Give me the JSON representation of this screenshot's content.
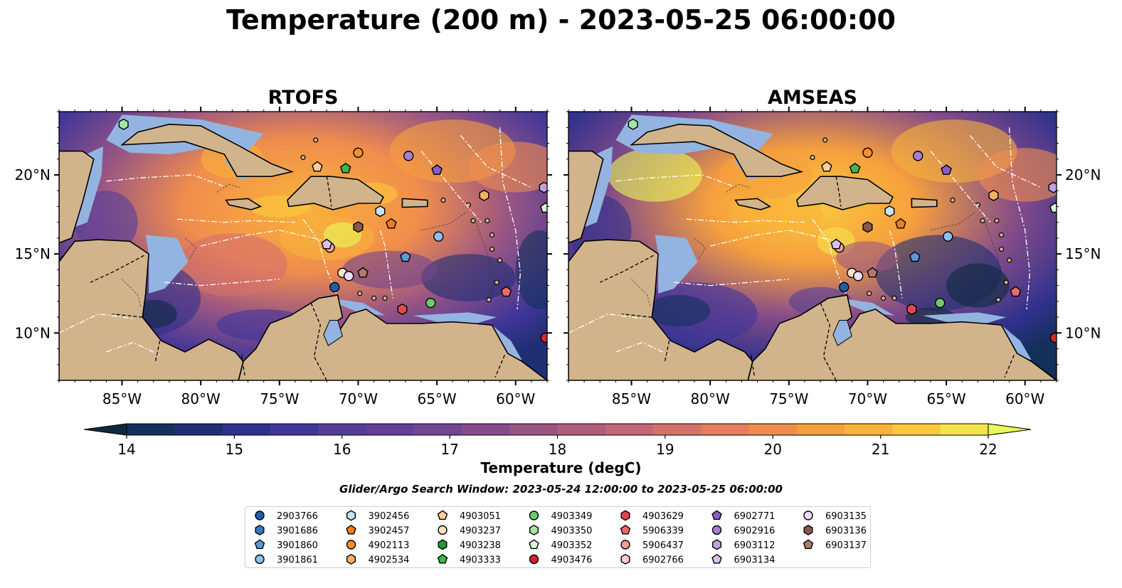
{
  "title": "Temperature (200 m) - 2023-05-25 06:00:00",
  "panels": [
    {
      "title": "RTOFS",
      "variant": 0
    },
    {
      "title": "AMSEAS",
      "variant": 1
    }
  ],
  "map": {
    "lon_range": [
      -89,
      -58
    ],
    "lat_range": [
      7,
      24
    ],
    "lon_ticks": [
      {
        "lon": -85,
        "label": "85°W"
      },
      {
        "lon": -80,
        "label": "80°W"
      },
      {
        "lon": -75,
        "label": "75°W"
      },
      {
        "lon": -70,
        "label": "70°W"
      },
      {
        "lon": -65,
        "label": "65°W"
      },
      {
        "lon": -60,
        "label": "60°W"
      }
    ],
    "lat_ticks": [
      {
        "lat": 20,
        "label": "20°N"
      },
      {
        "lat": 15,
        "label": "15°N"
      },
      {
        "lat": 10,
        "label": "10°N"
      }
    ],
    "colors": {
      "land": "#d2b48c",
      "shelf": "#93b4e0",
      "coast": "#000000",
      "eez": "#ffffff"
    }
  },
  "colorbar": {
    "label": "Temperature (degC)",
    "min": 14,
    "max": 22,
    "ticks": [
      "14",
      "15",
      "16",
      "17",
      "18",
      "19",
      "20",
      "21",
      "22"
    ],
    "colors": [
      "#0d2a3d",
      "#13305a",
      "#1f2f73",
      "#2f318c",
      "#403699",
      "#533d9b",
      "#633f96",
      "#724590",
      "#844c89",
      "#9a5683",
      "#b05c7c",
      "#c36777",
      "#d6706c",
      "#e57d5e",
      "#f08d4d",
      "#f6a03d",
      "#f9b33a",
      "#fbc93d",
      "#f3e44c",
      "#e8fa5b"
    ]
  },
  "search_window": "Glider/Argo Search Window: 2023-05-24 12:00:00 to 2023-05-25 06:00:00",
  "floats": [
    {
      "id": "2903766",
      "marker": "circle",
      "color": "#1f5fa8",
      "lon": -71.5,
      "lat": 12.9
    },
    {
      "id": "3901686",
      "marker": "hexagon",
      "color": "#3a78c2",
      "lon": null,
      "lat": null
    },
    {
      "id": "3901860",
      "marker": "pentagon",
      "color": "#5a9ad6",
      "lon": -67.0,
      "lat": 14.8
    },
    {
      "id": "3901861",
      "marker": "circle",
      "color": "#8cc0ec",
      "lon": -64.9,
      "lat": 16.1
    },
    {
      "id": "3902456",
      "marker": "hexagon",
      "color": "#c6e2f7",
      "lon": -68.6,
      "lat": 17.7
    },
    {
      "id": "3902457",
      "marker": "pentagon",
      "color": "#f07e1c",
      "lon": -67.9,
      "lat": 16.9
    },
    {
      "id": "4902113",
      "marker": "circle",
      "color": "#f5902e",
      "lon": -70.0,
      "lat": 21.4
    },
    {
      "id": "4902534",
      "marker": "hexagon",
      "color": "#fbb061",
      "lon": -62.0,
      "lat": 18.7
    },
    {
      "id": "4903051",
      "marker": "pentagon",
      "color": "#fdcf99",
      "lon": -72.6,
      "lat": 20.5
    },
    {
      "id": "4903237",
      "marker": "circle",
      "color": "#fde4c4",
      "lon": -71.0,
      "lat": 13.8
    },
    {
      "id": "4903238",
      "marker": "hexagon",
      "color": "#239a36",
      "lon": null,
      "lat": null
    },
    {
      "id": "4903333",
      "marker": "pentagon",
      "color": "#3fb54c",
      "lon": -70.8,
      "lat": 20.4
    },
    {
      "id": "4903349",
      "marker": "circle",
      "color": "#6ccb6b",
      "lon": -65.4,
      "lat": 11.9
    },
    {
      "id": "4903350",
      "marker": "hexagon",
      "color": "#a7e3a2",
      "lon": -84.9,
      "lat": 23.2
    },
    {
      "id": "4903352",
      "marker": "pentagon",
      "color": "#d4f5d0",
      "lon": -58.1,
      "lat": 17.9
    },
    {
      "id": "4903476",
      "marker": "circle",
      "color": "#d62728",
      "lon": -58.1,
      "lat": 9.7
    },
    {
      "id": "4903629",
      "marker": "hexagon",
      "color": "#e24a4a",
      "lon": -67.2,
      "lat": 11.5
    },
    {
      "id": "5906339",
      "marker": "pentagon",
      "color": "#f06a6a",
      "lon": -60.6,
      "lat": 12.6
    },
    {
      "id": "5906437",
      "marker": "circle",
      "color": "#f59a9a",
      "lon": -71.8,
      "lat": 15.4
    },
    {
      "id": "6902766",
      "marker": "hexagon",
      "color": "#fbcaca",
      "lon": null,
      "lat": null
    },
    {
      "id": "6902771",
      "marker": "pentagon",
      "color": "#8c5bc4",
      "lon": -65.0,
      "lat": 20.3
    },
    {
      "id": "6902916",
      "marker": "circle",
      "color": "#a67fd2",
      "lon": -66.8,
      "lat": 21.2
    },
    {
      "id": "6903112",
      "marker": "hexagon",
      "color": "#bfa0e0",
      "lon": -58.2,
      "lat": 19.2
    },
    {
      "id": "6903134",
      "marker": "pentagon",
      "color": "#d7c2ee",
      "lon": -72.0,
      "lat": 15.6
    },
    {
      "id": "6903135",
      "marker": "circle",
      "color": "#ecdcf8",
      "lon": -70.6,
      "lat": 13.6
    },
    {
      "id": "6903136",
      "marker": "hexagon",
      "color": "#8a574e",
      "lon": -70.0,
      "lat": 16.7
    },
    {
      "id": "6903137",
      "marker": "pentagon",
      "color": "#b07a6e",
      "lon": -69.7,
      "lat": 13.8
    }
  ]
}
